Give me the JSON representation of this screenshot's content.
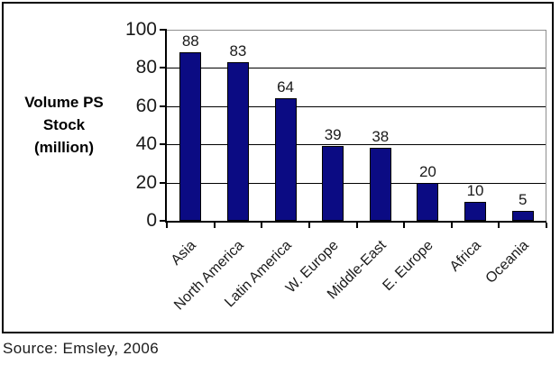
{
  "chart_data": {
    "type": "bar",
    "categories": [
      "Asia",
      "North America",
      "Latin America",
      "W. Europe",
      "Middle-East",
      "E. Europe",
      "Africa",
      "Oceania"
    ],
    "values": [
      88,
      83,
      64,
      39,
      38,
      20,
      10,
      5
    ],
    "value_labels": [
      "88",
      "83",
      "64",
      "39",
      "38",
      "20",
      "10",
      "5"
    ],
    "title": "",
    "xlabel": "",
    "ylabel": "Volume PS Stock (million)",
    "ylabel_lines": [
      "Volume PS",
      "Stock",
      "(million)"
    ],
    "yticks": [
      100,
      80,
      60,
      40,
      20,
      0
    ],
    "ylim": [
      0,
      100
    ],
    "grid": true,
    "legend": "none",
    "bar_color": "#0b0b83",
    "bar_border_color": "#000000",
    "gridline_color": "#000000",
    "plot_border_color": "#8f8f8f",
    "axis_color": "#000000",
    "text_color": "#1a1a1a"
  },
  "source": {
    "label": "Source: Emsley, 2006"
  }
}
